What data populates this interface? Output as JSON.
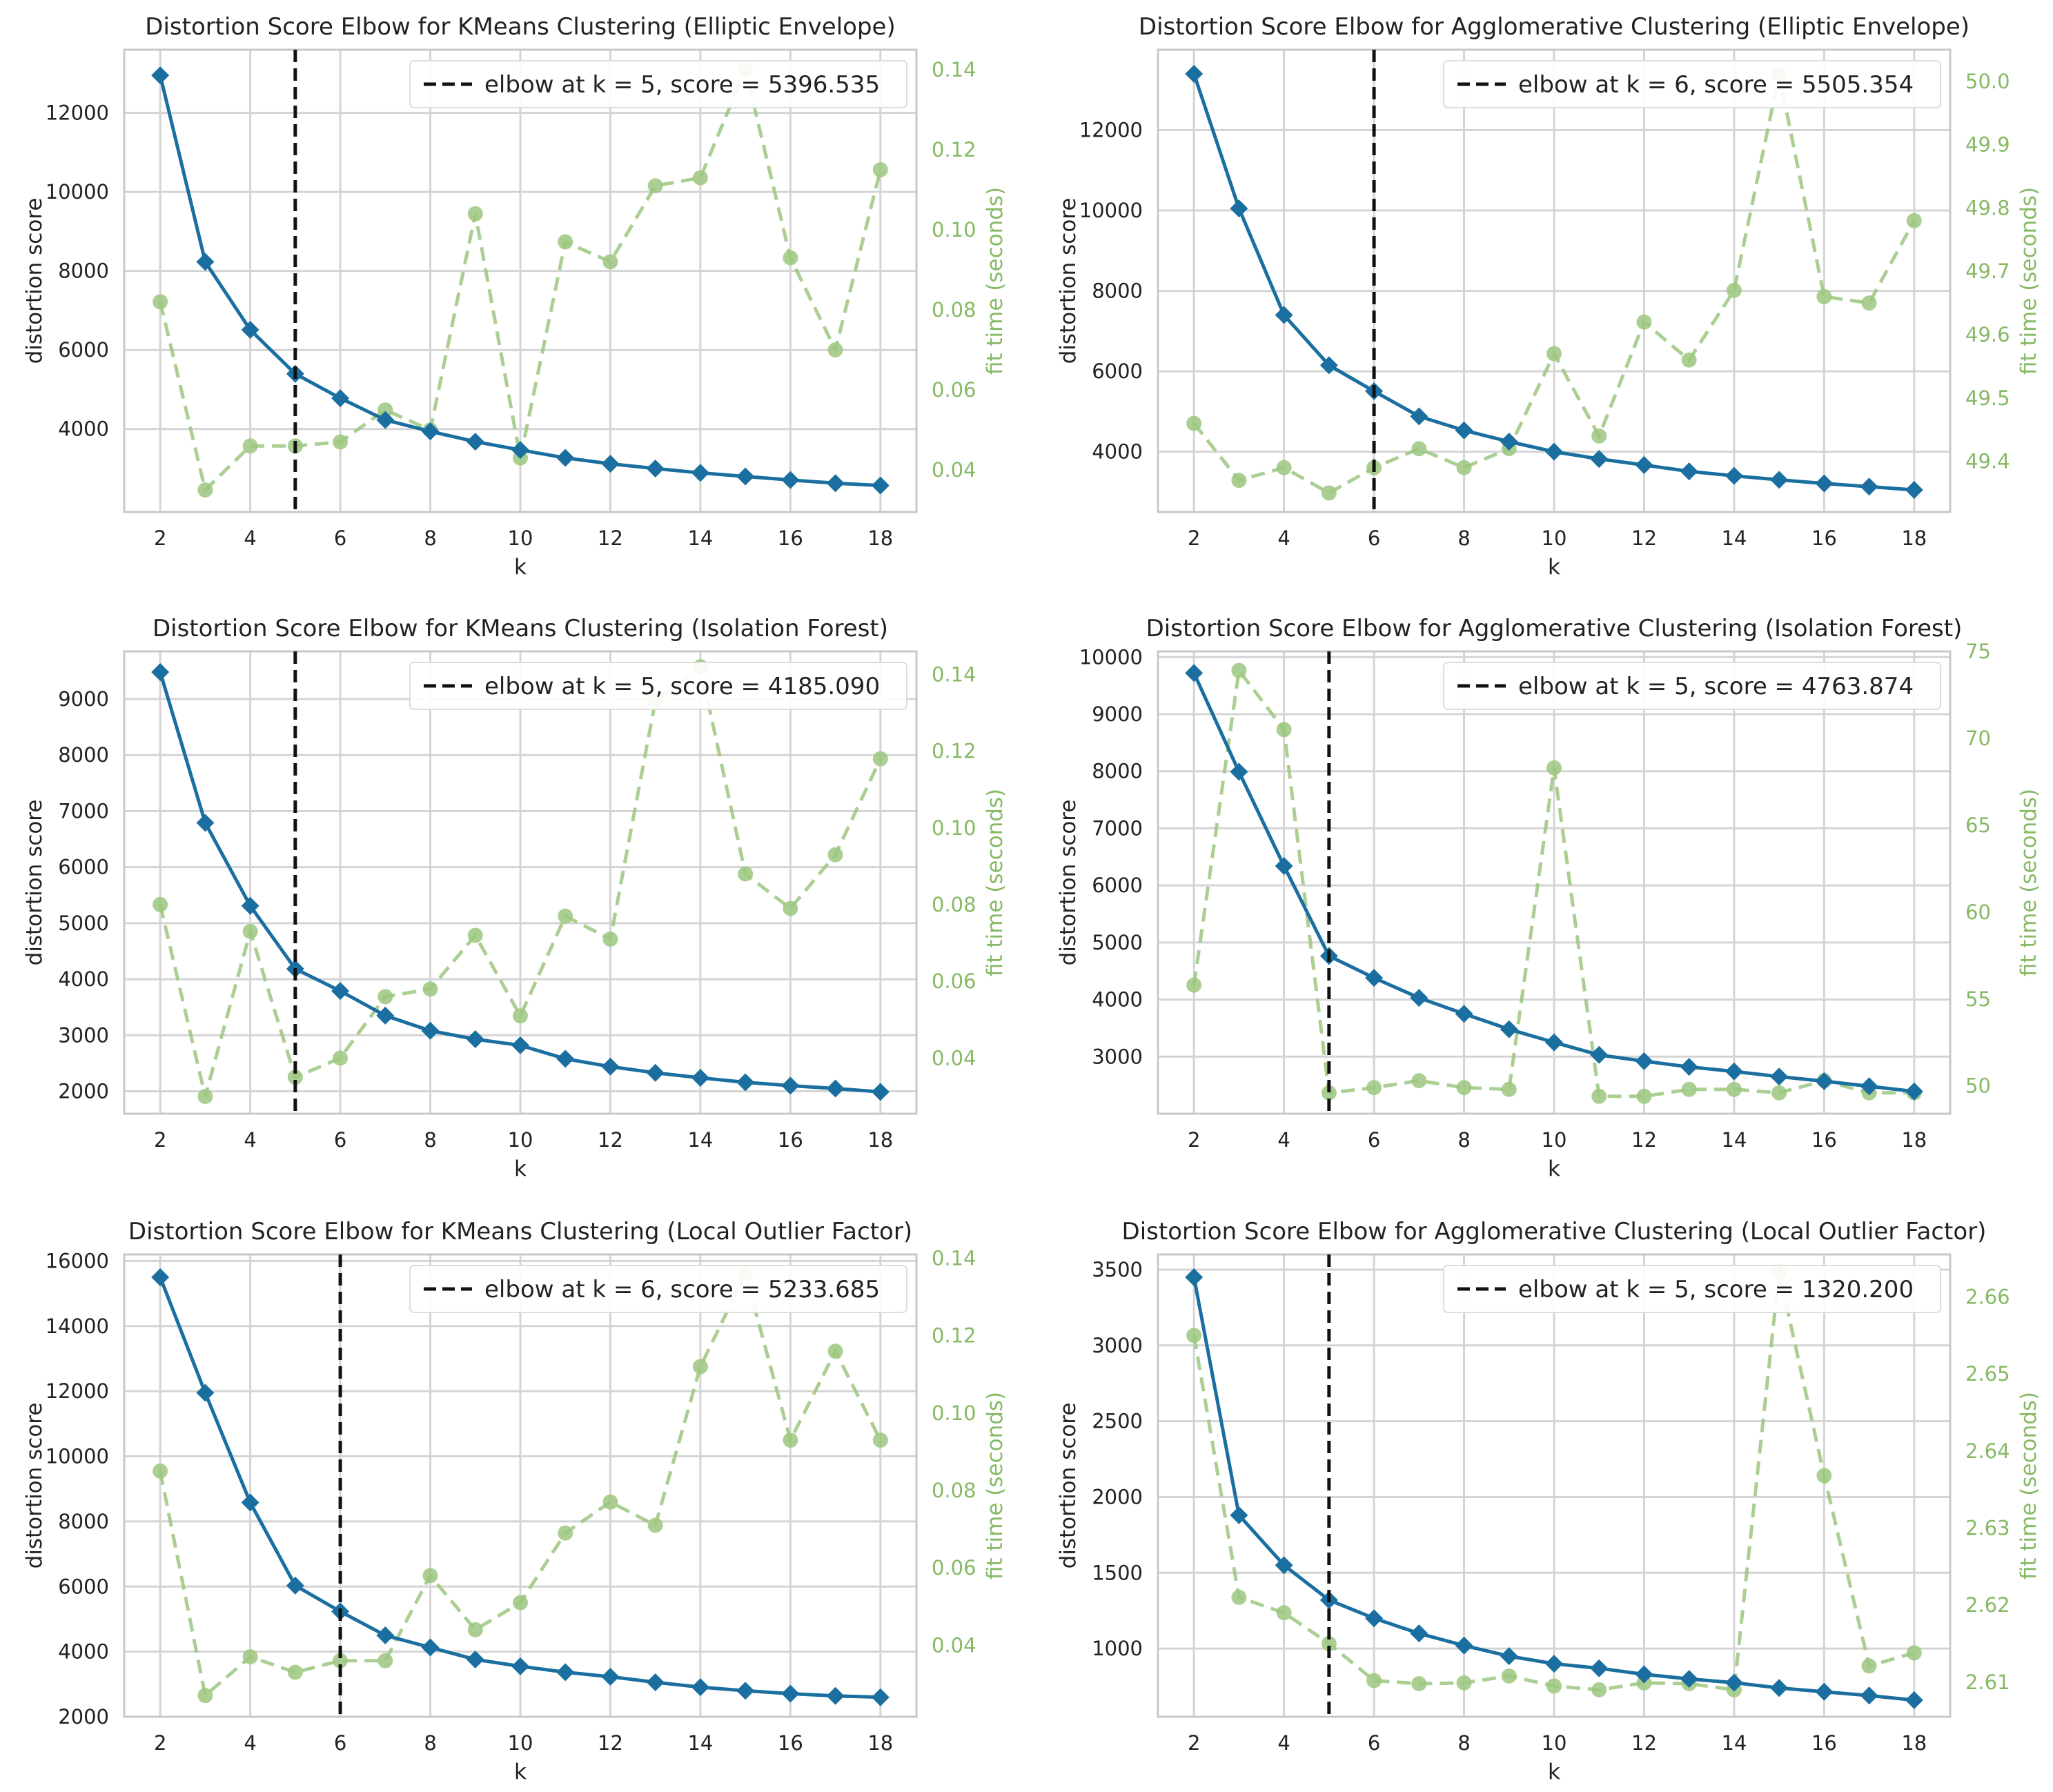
{
  "colors": {
    "distortion": "#1a6fa0",
    "fit_time": "#9cc77f",
    "fit_time_label": "#86b964",
    "elbow": "#111111",
    "grid": "#d4d4d4",
    "frame": "#c8c8c8"
  },
  "chart_data": [
    {
      "type": "line",
      "title": "Distortion Score Elbow for KMeans Clustering (Elliptic Envelope)",
      "xlabel": "k",
      "ylabel": "distortion score",
      "y2label": "fit time (seconds)",
      "x": [
        2,
        3,
        4,
        5,
        6,
        7,
        8,
        9,
        10,
        11,
        12,
        13,
        14,
        15,
        16,
        17,
        18
      ],
      "xlim": [
        1.2,
        18.8
      ],
      "xticks": [
        2,
        4,
        6,
        8,
        10,
        12,
        14,
        16,
        18
      ],
      "ylim": [
        1900,
        13600
      ],
      "yticks": [
        4000,
        6000,
        8000,
        10000,
        12000
      ],
      "ytick_labels": [
        "4000",
        "6000",
        "8000",
        "10000",
        "12000"
      ],
      "y2lim": [
        0.0295,
        0.145
      ],
      "y2ticks": [
        0.04,
        0.06,
        0.08,
        0.1,
        0.12,
        0.14
      ],
      "y2tick_labels": [
        "0.04",
        "0.06",
        "0.08",
        "0.10",
        "0.12",
        "0.14"
      ],
      "series": [
        {
          "name": "distortion score",
          "values": [
            12950,
            8230,
            6510,
            5397,
            4780,
            4230,
            3940,
            3680,
            3470,
            3270,
            3120,
            3000,
            2890,
            2800,
            2710,
            2630,
            2570
          ]
        },
        {
          "name": "fit time",
          "values": [
            0.082,
            0.035,
            0.046,
            0.046,
            0.047,
            0.055,
            0.05,
            0.104,
            0.043,
            0.097,
            0.092,
            0.111,
            0.113,
            0.14,
            0.093,
            0.07,
            0.115
          ]
        }
      ],
      "elbow_k": 5,
      "legend_label": "elbow at k = 5, score = 5396.535",
      "legend_location": "upper-right"
    },
    {
      "type": "line",
      "title": "Distortion Score Elbow for Agglomerative Clustering (Elliptic Envelope)",
      "xlabel": "k",
      "ylabel": "distortion score",
      "y2label": "fit time (seconds)",
      "x": [
        2,
        3,
        4,
        5,
        6,
        7,
        8,
        9,
        10,
        11,
        12,
        13,
        14,
        15,
        16,
        17,
        18
      ],
      "xlim": [
        1.2,
        18.8
      ],
      "xticks": [
        2,
        4,
        6,
        8,
        10,
        12,
        14,
        16,
        18
      ],
      "ylim": [
        2500,
        14000
      ],
      "yticks": [
        4000,
        6000,
        8000,
        10000,
        12000
      ],
      "ytick_labels": [
        "4000",
        "6000",
        "8000",
        "10000",
        "12000"
      ],
      "y2lim": [
        49.32,
        50.05
      ],
      "y2ticks": [
        49.4,
        49.5,
        49.6,
        49.7,
        49.8,
        49.9,
        50.0
      ],
      "y2tick_labels": [
        "49.4",
        "49.5",
        "49.6",
        "49.7",
        "49.8",
        "49.9",
        "50.0"
      ],
      "series": [
        {
          "name": "distortion score",
          "values": [
            13400,
            10050,
            7400,
            6150,
            5505,
            4880,
            4530,
            4250,
            4000,
            3820,
            3670,
            3510,
            3400,
            3300,
            3210,
            3130,
            3050
          ]
        },
        {
          "name": "fit time",
          "values": [
            49.46,
            49.37,
            49.39,
            49.35,
            49.39,
            49.42,
            49.39,
            49.42,
            49.57,
            49.44,
            49.62,
            49.56,
            49.67,
            50.01,
            49.66,
            49.65,
            49.78
          ]
        }
      ],
      "elbow_k": 6,
      "legend_label": "elbow at k = 6, score = 5505.354",
      "legend_location": "upper-right"
    },
    {
      "type": "line",
      "title": "Distortion Score Elbow for KMeans Clustering (Isolation Forest)",
      "xlabel": "k",
      "ylabel": "distortion score",
      "y2label": "fit time (seconds)",
      "x": [
        2,
        3,
        4,
        5,
        6,
        7,
        8,
        9,
        10,
        11,
        12,
        13,
        14,
        15,
        16,
        17,
        18
      ],
      "xlim": [
        1.2,
        18.8
      ],
      "xticks": [
        2,
        4,
        6,
        8,
        10,
        12,
        14,
        16,
        18
      ],
      "ylim": [
        1600,
        9850
      ],
      "yticks": [
        2000,
        3000,
        4000,
        5000,
        6000,
        7000,
        8000,
        9000
      ],
      "ytick_labels": [
        "2000",
        "3000",
        "4000",
        "5000",
        "6000",
        "7000",
        "8000",
        "9000"
      ],
      "y2lim": [
        0.0255,
        0.146
      ],
      "y2ticks": [
        0.04,
        0.06,
        0.08,
        0.1,
        0.12,
        0.14
      ],
      "y2tick_labels": [
        "0.04",
        "0.06",
        "0.08",
        "0.10",
        "0.12",
        "0.14"
      ],
      "series": [
        {
          "name": "distortion score",
          "values": [
            9480,
            6790,
            5310,
            4185,
            3790,
            3350,
            3080,
            2930,
            2820,
            2580,
            2440,
            2330,
            2240,
            2160,
            2100,
            2050,
            1990
          ]
        },
        {
          "name": "fit time",
          "values": [
            0.08,
            0.03,
            0.073,
            0.035,
            0.04,
            0.056,
            0.058,
            0.072,
            0.051,
            0.077,
            0.071,
            0.133,
            0.142,
            0.088,
            0.079,
            0.093,
            0.118
          ]
        }
      ],
      "elbow_k": 5,
      "legend_label": "elbow at k = 5, score = 4185.090",
      "legend_location": "upper-right"
    },
    {
      "type": "line",
      "title": "Distortion Score Elbow for Agglomerative Clustering (Isolation Forest)",
      "xlabel": "k",
      "ylabel": "distortion score",
      "y2label": "fit time (seconds)",
      "x": [
        2,
        3,
        4,
        5,
        6,
        7,
        8,
        9,
        10,
        11,
        12,
        13,
        14,
        15,
        16,
        17,
        18
      ],
      "xlim": [
        1.2,
        18.8
      ],
      "xticks": [
        2,
        4,
        6,
        8,
        10,
        12,
        14,
        16,
        18
      ],
      "ylim": [
        2000,
        10100
      ],
      "yticks": [
        3000,
        4000,
        5000,
        6000,
        7000,
        8000,
        9000,
        10000
      ],
      "ytick_labels": [
        "3000",
        "4000",
        "5000",
        "6000",
        "7000",
        "8000",
        "9000",
        "10000"
      ],
      "y2lim": [
        48.4,
        75.0
      ],
      "y2ticks": [
        50,
        55,
        60,
        65,
        70,
        75
      ],
      "y2tick_labels": [
        "50",
        "55",
        "60",
        "65",
        "70",
        "75"
      ],
      "series": [
        {
          "name": "distortion score",
          "values": [
            9720,
            7990,
            6340,
            4764,
            4380,
            4030,
            3750,
            3480,
            3250,
            3030,
            2920,
            2820,
            2740,
            2650,
            2570,
            2480,
            2390
          ]
        },
        {
          "name": "fit time",
          "values": [
            55.8,
            73.9,
            70.5,
            49.6,
            49.9,
            50.3,
            49.9,
            49.8,
            68.3,
            49.4,
            49.4,
            49.8,
            49.8,
            49.6,
            50.3,
            49.6,
            49.6
          ]
        }
      ],
      "elbow_k": 5,
      "legend_label": "elbow at k = 5, score = 4763.874",
      "legend_location": "upper-right"
    },
    {
      "type": "line",
      "title": "Distortion Score Elbow for KMeans Clustering (Local Outlier Factor)",
      "xlabel": "k",
      "ylabel": "distortion score",
      "y2label": "fit time (seconds)",
      "x": [
        2,
        3,
        4,
        5,
        6,
        7,
        8,
        9,
        10,
        11,
        12,
        13,
        14,
        15,
        16,
        17,
        18
      ],
      "xlim": [
        1.2,
        18.8
      ],
      "xticks": [
        2,
        4,
        6,
        8,
        10,
        12,
        14,
        16,
        18
      ],
      "ylim": [
        2000,
        16200
      ],
      "yticks": [
        2000,
        4000,
        6000,
        8000,
        10000,
        12000,
        14000,
        16000
      ],
      "ytick_labels": [
        "2000",
        "4000",
        "6000",
        "8000",
        "10000",
        "12000",
        "14000",
        "16000"
      ],
      "y2lim": [
        0.0215,
        0.141
      ],
      "y2ticks": [
        0.04,
        0.06,
        0.08,
        0.1,
        0.12,
        0.14
      ],
      "y2tick_labels": [
        "0.04",
        "0.06",
        "0.08",
        "0.10",
        "0.12",
        "0.14"
      ],
      "series": [
        {
          "name": "distortion score",
          "values": [
            15500,
            11950,
            8580,
            6030,
            5234,
            4500,
            4130,
            3760,
            3550,
            3370,
            3230,
            3060,
            2910,
            2800,
            2710,
            2640,
            2600
          ]
        },
        {
          "name": "fit time",
          "values": [
            0.085,
            0.027,
            0.037,
            0.033,
            0.036,
            0.036,
            0.058,
            0.044,
            0.051,
            0.069,
            0.077,
            0.071,
            0.112,
            0.136,
            0.093,
            0.116,
            0.093
          ]
        }
      ],
      "elbow_k": 6,
      "legend_label": "elbow at k = 6, score = 5233.685",
      "legend_location": "upper-right"
    },
    {
      "type": "line",
      "title": "Distortion Score Elbow for Agglomerative Clustering (Local Outlier Factor)",
      "xlabel": "k",
      "ylabel": "distortion score",
      "y2label": "fit time (seconds)",
      "x": [
        2,
        3,
        4,
        5,
        6,
        7,
        8,
        9,
        10,
        11,
        12,
        13,
        14,
        15,
        16,
        17,
        18
      ],
      "xlim": [
        1.2,
        18.8
      ],
      "xticks": [
        2,
        4,
        6,
        8,
        10,
        12,
        14,
        16,
        18
      ],
      "ylim": [
        550,
        3600
      ],
      "yticks": [
        1000,
        1500,
        2000,
        2500,
        3000,
        3500
      ],
      "ytick_labels": [
        "1000",
        "1500",
        "2000",
        "2500",
        "3000",
        "3500"
      ],
      "y2lim": [
        2.6055,
        2.6655
      ],
      "y2ticks": [
        2.61,
        2.62,
        2.63,
        2.64,
        2.65,
        2.66
      ],
      "y2tick_labels": [
        "2.61",
        "2.62",
        "2.63",
        "2.64",
        "2.65",
        "2.66"
      ],
      "series": [
        {
          "name": "distortion score",
          "values": [
            3450,
            1880,
            1550,
            1320,
            1200,
            1100,
            1020,
            950,
            900,
            870,
            830,
            800,
            775,
            740,
            715,
            690,
            660
          ]
        },
        {
          "name": "fit time",
          "values": [
            2.655,
            2.621,
            2.619,
            2.615,
            2.6102,
            2.6098,
            2.6099,
            2.6108,
            2.6095,
            2.609,
            2.6099,
            2.6098,
            2.609,
            2.6632,
            2.6368,
            2.6121,
            2.6138
          ]
        }
      ],
      "elbow_k": 5,
      "legend_label": "elbow at k = 5, score = 1320.200",
      "legend_location": "upper-right"
    }
  ]
}
